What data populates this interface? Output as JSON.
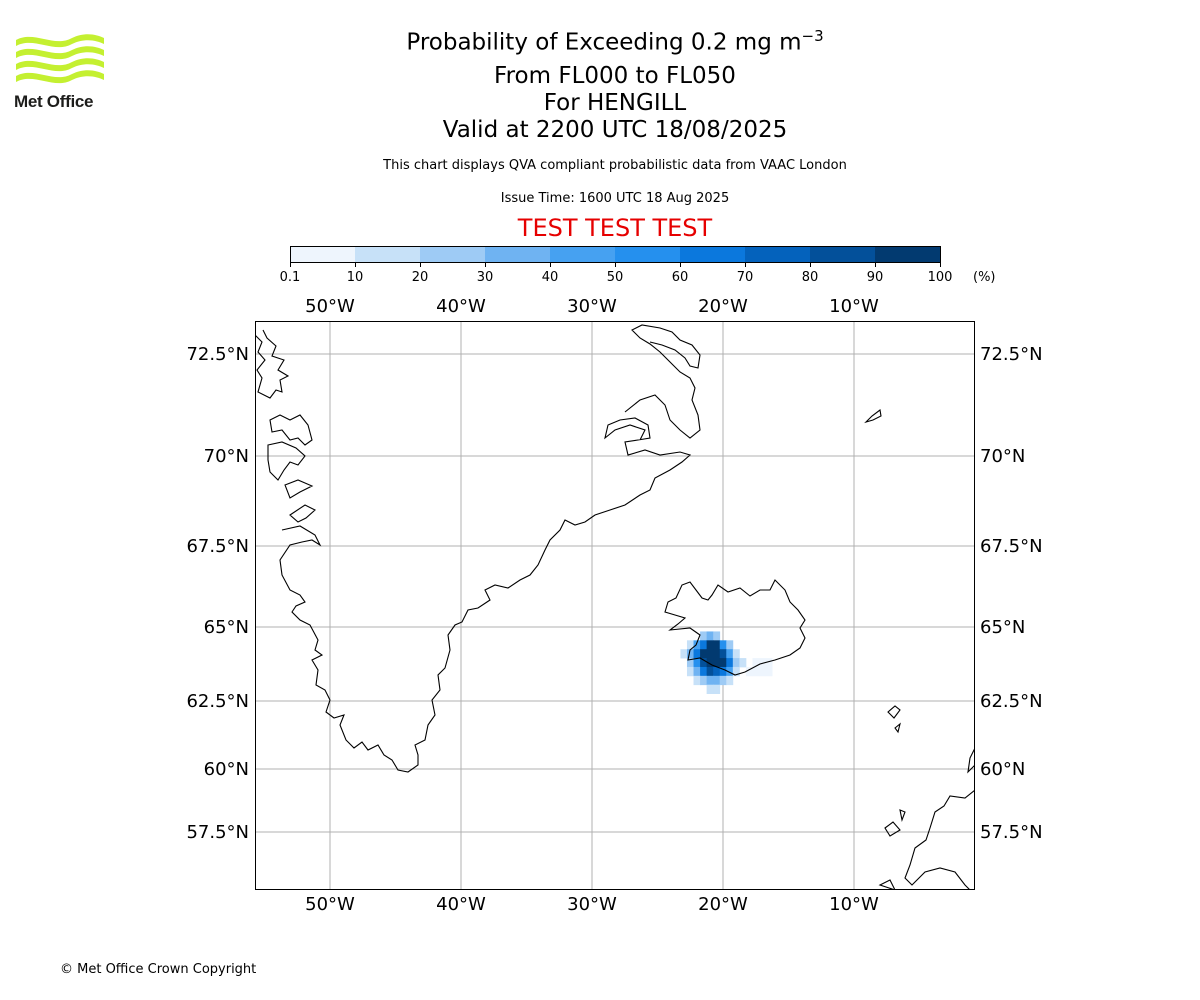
{
  "logo": {
    "text": "Met Office",
    "color": "#c4f031"
  },
  "title": {
    "main_prefix": "Probability of Exceeding 0.2 mg m",
    "main_exponent": "−3",
    "line2": "From FL000 to FL050",
    "line3": "For HENGILL",
    "line4": "Valid at 2200 UTC 18/08/2025"
  },
  "description": "This chart displays QVA compliant probabilistic data from VAAC London",
  "issue_time": "Issue Time: 1600 UTC 18 Aug 2025",
  "test_banner": "TEST TEST TEST",
  "colorbar": {
    "ticks": [
      "0.1",
      "10",
      "20",
      "30",
      "40",
      "50",
      "60",
      "70",
      "80",
      "90",
      "100"
    ],
    "unit": "(%)",
    "colors": [
      "#eef5fd",
      "#c7e1f8",
      "#9ecbf5",
      "#6fb3f2",
      "#46a1f1",
      "#2590ee",
      "#0b78dd",
      "#0462bc",
      "#03509a",
      "#023a70",
      "#012a55"
    ]
  },
  "map": {
    "lon_labels": [
      "50°W",
      "40°W",
      "30°W",
      "20°W",
      "10°W"
    ],
    "lat_labels": [
      "72.5°N",
      "70°N",
      "67.5°N",
      "65°N",
      "62.5°N",
      "60°N",
      "57.5°N"
    ],
    "grid_color": "#b0b0b0",
    "volcano": "HENGILL",
    "probability_field": [
      {
        "lon": -21.5,
        "lat": 64.7,
        "prob": 20
      },
      {
        "lon": -21.0,
        "lat": 64.7,
        "prob": 30
      },
      {
        "lon": -20.5,
        "lat": 64.7,
        "prob": 20
      },
      {
        "lon": -22.5,
        "lat": 64.4,
        "prob": 10
      },
      {
        "lon": -22.0,
        "lat": 64.4,
        "prob": 40
      },
      {
        "lon": -21.5,
        "lat": 64.4,
        "prob": 60
      },
      {
        "lon": -21.0,
        "lat": 64.4,
        "prob": 95
      },
      {
        "lon": -20.5,
        "lat": 64.4,
        "prob": 95
      },
      {
        "lon": -20.0,
        "lat": 64.4,
        "prob": 50
      },
      {
        "lon": -19.5,
        "lat": 64.4,
        "prob": 20
      },
      {
        "lon": -23.0,
        "lat": 64.1,
        "prob": 10
      },
      {
        "lon": -22.5,
        "lat": 64.1,
        "prob": 30
      },
      {
        "lon": -22.0,
        "lat": 64.1,
        "prob": 60
      },
      {
        "lon": -21.5,
        "lat": 64.1,
        "prob": 90
      },
      {
        "lon": -21.0,
        "lat": 64.1,
        "prob": 95
      },
      {
        "lon": -20.5,
        "lat": 64.1,
        "prob": 95
      },
      {
        "lon": -20.0,
        "lat": 64.1,
        "prob": 80
      },
      {
        "lon": -19.5,
        "lat": 64.1,
        "prob": 40
      },
      {
        "lon": -19.0,
        "lat": 64.1,
        "prob": 10
      },
      {
        "lon": -22.5,
        "lat": 63.8,
        "prob": 20
      },
      {
        "lon": -22.0,
        "lat": 63.8,
        "prob": 50
      },
      {
        "lon": -21.5,
        "lat": 63.8,
        "prob": 80
      },
      {
        "lon": -21.0,
        "lat": 63.8,
        "prob": 95
      },
      {
        "lon": -20.5,
        "lat": 63.8,
        "prob": 95
      },
      {
        "lon": -20.0,
        "lat": 63.8,
        "prob": 90
      },
      {
        "lon": -19.5,
        "lat": 63.8,
        "prob": 60
      },
      {
        "lon": -19.0,
        "lat": 63.8,
        "prob": 20
      },
      {
        "lon": -18.5,
        "lat": 63.8,
        "prob": 10
      },
      {
        "lon": -17.5,
        "lat": 63.8,
        "prob": 5
      },
      {
        "lon": -17.0,
        "lat": 63.8,
        "prob": 5
      },
      {
        "lon": -16.5,
        "lat": 63.8,
        "prob": 5
      },
      {
        "lon": -22.5,
        "lat": 63.5,
        "prob": 10
      },
      {
        "lon": -22.0,
        "lat": 63.5,
        "prob": 30
      },
      {
        "lon": -21.5,
        "lat": 63.5,
        "prob": 60
      },
      {
        "lon": -21.0,
        "lat": 63.5,
        "prob": 80
      },
      {
        "lon": -20.5,
        "lat": 63.5,
        "prob": 70
      },
      {
        "lon": -20.0,
        "lat": 63.5,
        "prob": 60
      },
      {
        "lon": -19.5,
        "lat": 63.5,
        "prob": 40
      },
      {
        "lon": -19.0,
        "lat": 63.5,
        "prob": 10
      },
      {
        "lon": -18.0,
        "lat": 63.5,
        "prob": 5
      },
      {
        "lon": -17.5,
        "lat": 63.5,
        "prob": 5
      },
      {
        "lon": -17.0,
        "lat": 63.5,
        "prob": 5
      },
      {
        "lon": -16.5,
        "lat": 63.5,
        "prob": 5
      },
      {
        "lon": -22.0,
        "lat": 63.2,
        "prob": 10
      },
      {
        "lon": -21.5,
        "lat": 63.2,
        "prob": 20
      },
      {
        "lon": -21.0,
        "lat": 63.2,
        "prob": 30
      },
      {
        "lon": -20.5,
        "lat": 63.2,
        "prob": 30
      },
      {
        "lon": -20.0,
        "lat": 63.2,
        "prob": 20
      },
      {
        "lon": -19.5,
        "lat": 63.2,
        "prob": 10
      },
      {
        "lon": -21.0,
        "lat": 62.9,
        "prob": 10
      },
      {
        "lon": -20.5,
        "lat": 62.9,
        "prob": 10
      }
    ]
  },
  "copyright": "© Met Office Crown Copyright"
}
